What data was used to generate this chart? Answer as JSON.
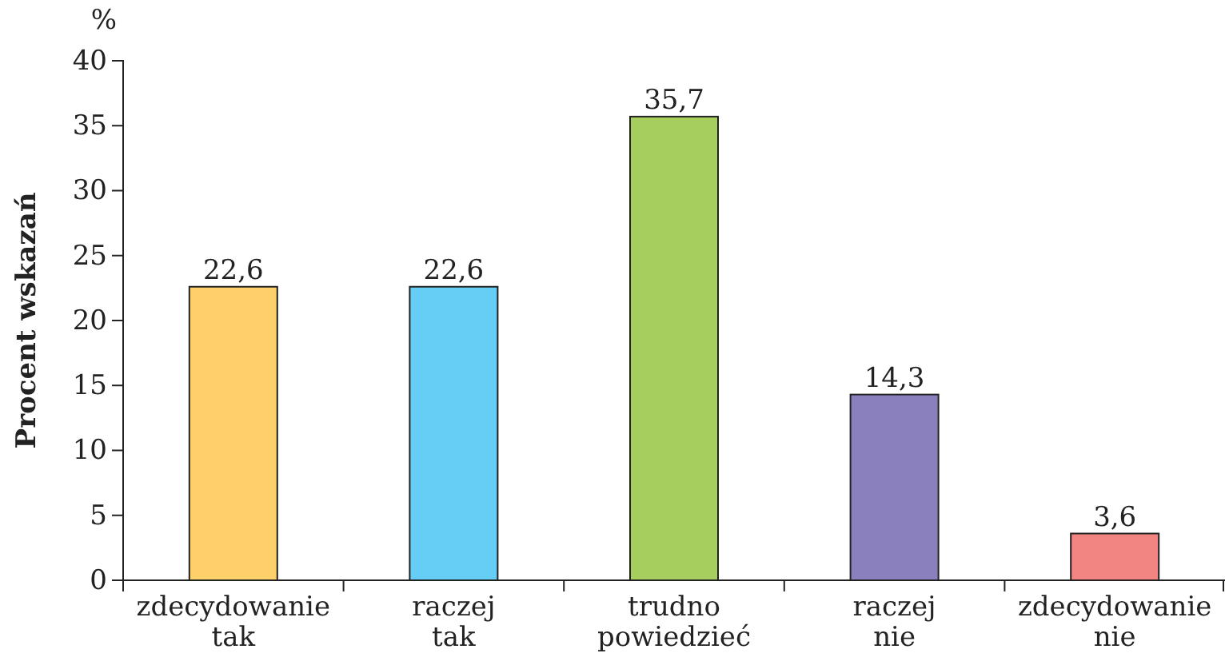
{
  "chart_data": {
    "type": "bar",
    "ylabel": "Procent wskazań",
    "annotations": [
      "%"
    ],
    "categories": [
      "zdecydowanie tak",
      "raczej tak",
      "trudno powiedzieć",
      "raczej nie",
      "zdecydowanie nie"
    ],
    "values": [
      22.6,
      22.6,
      35.7,
      14.3,
      3.6
    ],
    "colors": [
      "#fdd06a",
      "#66cdf5",
      "#a5ce5f",
      "#8a80be",
      "#f28482"
    ],
    "value_labels": [
      "22,6",
      "22,6",
      "35,7",
      "14,3",
      "3,6"
    ],
    "ylim": [
      0,
      40
    ],
    "yticks": [
      0,
      5,
      10,
      15,
      20,
      25,
      30,
      35,
      40
    ],
    "grid": false
  }
}
